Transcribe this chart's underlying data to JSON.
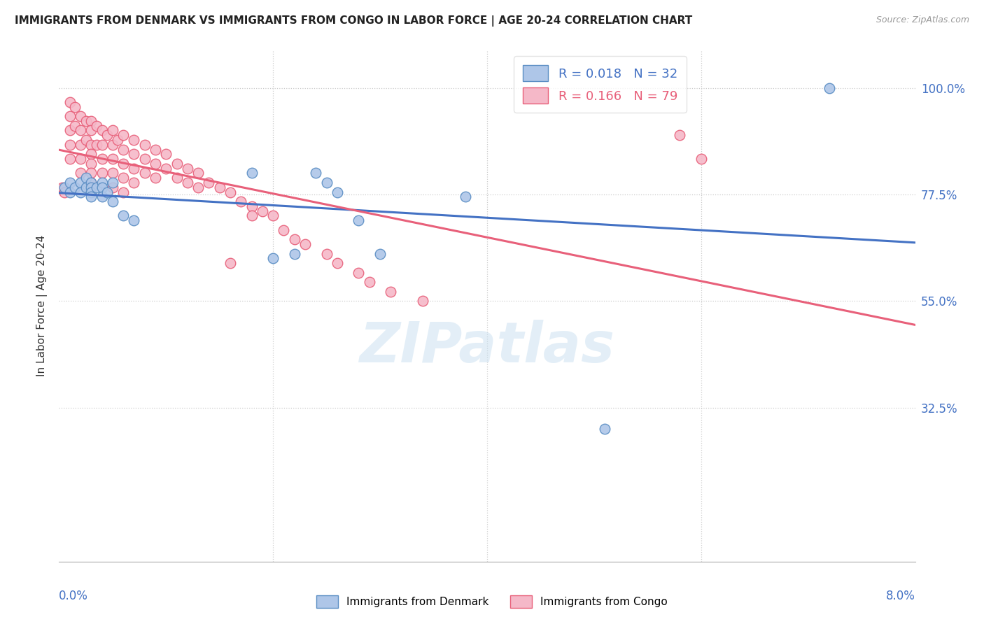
{
  "title": "IMMIGRANTS FROM DENMARK VS IMMIGRANTS FROM CONGO IN LABOR FORCE | AGE 20-24 CORRELATION CHART",
  "source": "Source: ZipAtlas.com",
  "ylabel": "In Labor Force | Age 20-24",
  "xlim": [
    0.0,
    0.08
  ],
  "ylim": [
    0.0,
    1.08
  ],
  "legend_denmark_r": "R = 0.018",
  "legend_denmark_n": "N = 32",
  "legend_congo_r": "R = 0.166",
  "legend_congo_n": "N = 79",
  "denmark_color": "#aec6e8",
  "congo_color": "#f5b8c8",
  "denmark_edge": "#5b8ec4",
  "congo_edge": "#e8607a",
  "denmark_line_color": "#4472c4",
  "congo_line_color": "#e8607a",
  "watermark": "ZIPatlas",
  "denmark_x": [
    0.0005,
    0.001,
    0.001,
    0.0015,
    0.002,
    0.002,
    0.0025,
    0.0025,
    0.003,
    0.003,
    0.003,
    0.003,
    0.0035,
    0.004,
    0.004,
    0.004,
    0.0045,
    0.005,
    0.005,
    0.006,
    0.007,
    0.018,
    0.02,
    0.022,
    0.024,
    0.025,
    0.026,
    0.028,
    0.03,
    0.038,
    0.051,
    0.072
  ],
  "denmark_y": [
    0.79,
    0.8,
    0.78,
    0.79,
    0.8,
    0.78,
    0.81,
    0.79,
    0.8,
    0.79,
    0.78,
    0.77,
    0.79,
    0.8,
    0.79,
    0.77,
    0.78,
    0.8,
    0.76,
    0.73,
    0.72,
    0.82,
    0.64,
    0.65,
    0.82,
    0.8,
    0.78,
    0.72,
    0.65,
    0.77,
    0.28,
    1.0
  ],
  "congo_x": [
    0.0003,
    0.0005,
    0.001,
    0.001,
    0.001,
    0.001,
    0.001,
    0.0015,
    0.0015,
    0.002,
    0.002,
    0.002,
    0.002,
    0.002,
    0.0025,
    0.0025,
    0.003,
    0.003,
    0.003,
    0.003,
    0.003,
    0.003,
    0.003,
    0.0035,
    0.0035,
    0.004,
    0.004,
    0.004,
    0.004,
    0.0045,
    0.005,
    0.005,
    0.005,
    0.005,
    0.005,
    0.0055,
    0.006,
    0.006,
    0.006,
    0.006,
    0.006,
    0.007,
    0.007,
    0.007,
    0.007,
    0.008,
    0.008,
    0.008,
    0.009,
    0.009,
    0.009,
    0.01,
    0.01,
    0.011,
    0.011,
    0.012,
    0.012,
    0.013,
    0.013,
    0.014,
    0.015,
    0.016,
    0.016,
    0.017,
    0.018,
    0.018,
    0.019,
    0.02,
    0.021,
    0.022,
    0.023,
    0.025,
    0.026,
    0.028,
    0.029,
    0.031,
    0.034,
    0.058,
    0.06
  ],
  "congo_y": [
    0.79,
    0.78,
    0.97,
    0.94,
    0.91,
    0.88,
    0.85,
    0.96,
    0.92,
    0.94,
    0.91,
    0.88,
    0.85,
    0.82,
    0.93,
    0.89,
    0.93,
    0.91,
    0.88,
    0.86,
    0.84,
    0.82,
    0.8,
    0.92,
    0.88,
    0.91,
    0.88,
    0.85,
    0.82,
    0.9,
    0.91,
    0.88,
    0.85,
    0.82,
    0.79,
    0.89,
    0.9,
    0.87,
    0.84,
    0.81,
    0.78,
    0.89,
    0.86,
    0.83,
    0.8,
    0.88,
    0.85,
    0.82,
    0.87,
    0.84,
    0.81,
    0.86,
    0.83,
    0.84,
    0.81,
    0.83,
    0.8,
    0.82,
    0.79,
    0.8,
    0.79,
    0.78,
    0.63,
    0.76,
    0.75,
    0.73,
    0.74,
    0.73,
    0.7,
    0.68,
    0.67,
    0.65,
    0.63,
    0.61,
    0.59,
    0.57,
    0.55,
    0.9,
    0.85
  ]
}
